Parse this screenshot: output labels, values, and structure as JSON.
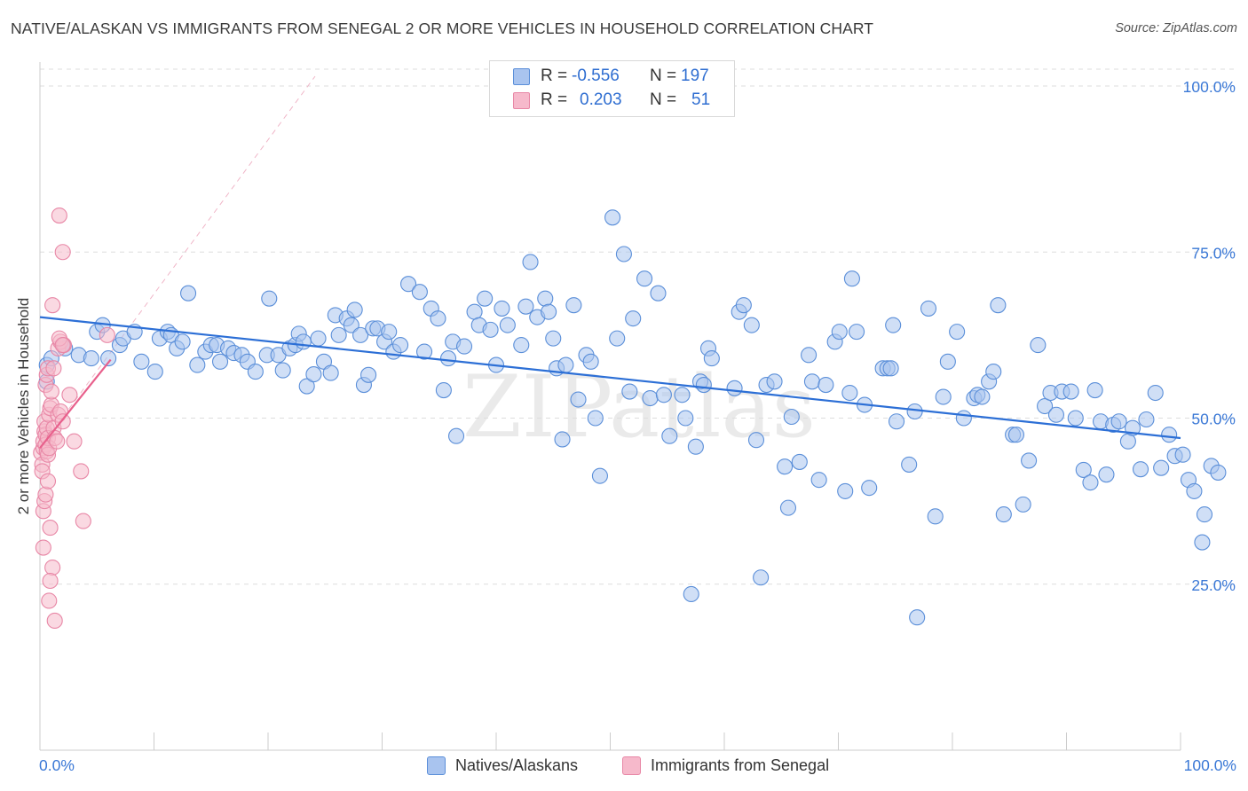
{
  "title": "NATIVE/ALASKAN VS IMMIGRANTS FROM SENEGAL 2 OR MORE VEHICLES IN HOUSEHOLD CORRELATION CHART",
  "source": "Source: ZipAtlas.com",
  "watermark": "ZIPatlas",
  "colors": {
    "blue_fill": "#a9c4ef",
    "blue_stroke": "#5b8fd9",
    "blue_line": "#2c6fd6",
    "pink_fill": "#f6b9cb",
    "pink_stroke": "#e887a6",
    "pink_line": "#e8608c",
    "axis_text": "#3a78d6"
  },
  "legend_top": {
    "r_label": "R =",
    "n_label": "N =",
    "rows": [
      {
        "r": "-0.556",
        "n": "197"
      },
      {
        "r": "0.203",
        "n": "51"
      }
    ]
  },
  "legend_bottom": [
    "Natives/Alaskans",
    "Immigrants from Senegal"
  ],
  "chart_data": {
    "type": "scatter",
    "title": "NATIVE/ALASKAN VS IMMIGRANTS FROM SENEGAL 2 OR MORE VEHICLES IN HOUSEHOLD CORRELATION CHART",
    "xlabel": "",
    "ylabel": "2 or more Vehicles in Household",
    "x_tick_labels": [
      "0.0%",
      "100.0%"
    ],
    "y_tick_labels": [
      "25.0%",
      "50.0%",
      "75.0%",
      "100.0%"
    ],
    "xlim": [
      0,
      100
    ],
    "ylim": [
      0,
      102
    ],
    "grid": "horizontal dashed",
    "legend_position": "top-center",
    "series": [
      {
        "name": "Natives/Alaskans",
        "r": -0.556,
        "n": 197,
        "trend": {
          "x": [
            0,
            100
          ],
          "y": [
            65.2,
            47.0
          ]
        },
        "points": [
          [
            0.6,
            58
          ],
          [
            0.6,
            55.5
          ],
          [
            1,
            59
          ],
          [
            2,
            61
          ],
          [
            2.2,
            60.5
          ],
          [
            3.4,
            59.5
          ],
          [
            4.5,
            59
          ],
          [
            5,
            63
          ],
          [
            5.5,
            64
          ],
          [
            6,
            59
          ],
          [
            7,
            61
          ],
          [
            7.3,
            62
          ],
          [
            8.3,
            63
          ],
          [
            8.9,
            58.5
          ],
          [
            10.1,
            57
          ],
          [
            10.5,
            62
          ],
          [
            11.2,
            63
          ],
          [
            11.5,
            62.5
          ],
          [
            12,
            60.5
          ],
          [
            12.5,
            61.5
          ],
          [
            13,
            68.8
          ],
          [
            13.8,
            58
          ],
          [
            14.5,
            60
          ],
          [
            15,
            61
          ],
          [
            15.5,
            61
          ],
          [
            15.8,
            58.5
          ],
          [
            16.5,
            60.5
          ],
          [
            17,
            59.8
          ],
          [
            17.7,
            59.5
          ],
          [
            18.2,
            58.5
          ],
          [
            18.9,
            57
          ],
          [
            19.9,
            59.5
          ],
          [
            20.1,
            68
          ],
          [
            20.9,
            59.5
          ],
          [
            21.3,
            57.2
          ],
          [
            21.9,
            60.5
          ],
          [
            22.4,
            61
          ],
          [
            22.7,
            62.7
          ],
          [
            23.1,
            61.5
          ],
          [
            23.4,
            54.8
          ],
          [
            24,
            56.6
          ],
          [
            24.4,
            62
          ],
          [
            24.9,
            58.5
          ],
          [
            25.5,
            56.8
          ],
          [
            25.9,
            65.5
          ],
          [
            26.2,
            62.5
          ],
          [
            26.9,
            65
          ],
          [
            27.3,
            64
          ],
          [
            27.6,
            66.3
          ],
          [
            28.1,
            62.5
          ],
          [
            28.4,
            55
          ],
          [
            28.8,
            56.5
          ],
          [
            29.2,
            63.5
          ],
          [
            29.6,
            63.5
          ],
          [
            30.2,
            61.5
          ],
          [
            30.6,
            63
          ],
          [
            31,
            60
          ],
          [
            31.6,
            61
          ],
          [
            32.3,
            70.2
          ],
          [
            33.3,
            69
          ],
          [
            33.7,
            60
          ],
          [
            34.3,
            66.5
          ],
          [
            34.9,
            65
          ],
          [
            35.4,
            54.2
          ],
          [
            35.8,
            59
          ],
          [
            36.2,
            61.5
          ],
          [
            36.5,
            47.3
          ],
          [
            37.2,
            60.8
          ],
          [
            38.1,
            66
          ],
          [
            38.5,
            64
          ],
          [
            39,
            68
          ],
          [
            39.5,
            63.3
          ],
          [
            40,
            58
          ],
          [
            40.5,
            66.5
          ],
          [
            41,
            64
          ],
          [
            42.2,
            61
          ],
          [
            42.6,
            66.8
          ],
          [
            43,
            73.5
          ],
          [
            43.6,
            65.2
          ],
          [
            44.3,
            68
          ],
          [
            44.6,
            66
          ],
          [
            45,
            62
          ],
          [
            45.3,
            57.5
          ],
          [
            45.8,
            46.8
          ],
          [
            46.1,
            58
          ],
          [
            46.8,
            67
          ],
          [
            47.2,
            52.8
          ],
          [
            47.9,
            59.5
          ],
          [
            48.3,
            58.5
          ],
          [
            48.7,
            50
          ],
          [
            49.1,
            41.3
          ],
          [
            50.2,
            80.2
          ],
          [
            50.6,
            62
          ],
          [
            51.2,
            74.7
          ],
          [
            51.7,
            54
          ],
          [
            52,
            65
          ],
          [
            53,
            71
          ],
          [
            53.5,
            53
          ],
          [
            54.2,
            68.8
          ],
          [
            54.7,
            53.5
          ],
          [
            55.2,
            47.3
          ],
          [
            56.3,
            53.5
          ],
          [
            56.6,
            50
          ],
          [
            57.1,
            23.5
          ],
          [
            57.5,
            45.7
          ],
          [
            57.9,
            55.5
          ],
          [
            58.2,
            55
          ],
          [
            58.6,
            60.5
          ],
          [
            58.9,
            59
          ],
          [
            60.9,
            54.5
          ],
          [
            61.3,
            66
          ],
          [
            61.7,
            67
          ],
          [
            62.4,
            64
          ],
          [
            62.8,
            46.7
          ],
          [
            63.2,
            26
          ],
          [
            63.7,
            55
          ],
          [
            64.4,
            55.5
          ],
          [
            65.3,
            42.7
          ],
          [
            65.6,
            36.5
          ],
          [
            65.9,
            50.2
          ],
          [
            66.6,
            43.4
          ],
          [
            67.4,
            59.5
          ],
          [
            67.7,
            55.5
          ],
          [
            68.3,
            40.7
          ],
          [
            68.9,
            55
          ],
          [
            69.7,
            61.5
          ],
          [
            70.1,
            63
          ],
          [
            70.6,
            39
          ],
          [
            71,
            53.8
          ],
          [
            71.2,
            71
          ],
          [
            71.6,
            63
          ],
          [
            72.3,
            52
          ],
          [
            72.7,
            39.5
          ],
          [
            73.9,
            57.5
          ],
          [
            74.3,
            57.5
          ],
          [
            74.6,
            57.5
          ],
          [
            74.8,
            64
          ],
          [
            75.1,
            49.5
          ],
          [
            76.2,
            43
          ],
          [
            76.7,
            51
          ],
          [
            76.9,
            20
          ],
          [
            77.9,
            66.5
          ],
          [
            78.5,
            35.2
          ],
          [
            79.2,
            53.2
          ],
          [
            79.6,
            58.5
          ],
          [
            80.4,
            63
          ],
          [
            81,
            50
          ],
          [
            81.9,
            53
          ],
          [
            82.2,
            53.5
          ],
          [
            82.6,
            53.2
          ],
          [
            83.2,
            55.5
          ],
          [
            83.6,
            57
          ],
          [
            84,
            67
          ],
          [
            84.5,
            35.5
          ],
          [
            85.3,
            47.5
          ],
          [
            85.6,
            47.5
          ],
          [
            86.2,
            37
          ],
          [
            86.7,
            43.6
          ],
          [
            87.5,
            61
          ],
          [
            88.1,
            51.8
          ],
          [
            88.6,
            53.8
          ],
          [
            89.1,
            50.5
          ],
          [
            89.6,
            54
          ],
          [
            90.4,
            54
          ],
          [
            90.8,
            50
          ],
          [
            91.5,
            42.2
          ],
          [
            92.1,
            40.3
          ],
          [
            92.5,
            54.2
          ],
          [
            93,
            49.5
          ],
          [
            93.5,
            41.5
          ],
          [
            94.1,
            49
          ],
          [
            94.6,
            49.5
          ],
          [
            95.4,
            46.5
          ],
          [
            95.8,
            48.5
          ],
          [
            96.5,
            42.3
          ],
          [
            97,
            49.8
          ],
          [
            97.8,
            53.8
          ],
          [
            98.3,
            42.5
          ],
          [
            99,
            47.5
          ],
          [
            99.5,
            44.3
          ],
          [
            100.2,
            44.5
          ],
          [
            100.7,
            40.7
          ],
          [
            101.2,
            39
          ],
          [
            101.9,
            31.3
          ],
          [
            102.1,
            35.5
          ],
          [
            102.7,
            42.8
          ],
          [
            103.3,
            41.8
          ]
        ]
      },
      {
        "name": "Immigrants from Senegal",
        "r": 0.203,
        "n": 51,
        "trend": {
          "x": [
            0,
            6.2
          ],
          "y": [
            45.5,
            58.8
          ]
        },
        "points": [
          [
            0.1,
            44.8
          ],
          [
            0.2,
            43
          ],
          [
            0.2,
            42
          ],
          [
            0.3,
            45.5
          ],
          [
            0.3,
            46.5
          ],
          [
            0.4,
            48
          ],
          [
            0.4,
            49.5
          ],
          [
            0.5,
            47.5
          ],
          [
            0.5,
            46
          ],
          [
            0.6,
            48.5
          ],
          [
            0.6,
            45
          ],
          [
            0.7,
            44.5
          ],
          [
            0.7,
            47
          ],
          [
            0.8,
            45.5
          ],
          [
            0.8,
            50.5
          ],
          [
            0.9,
            51.5
          ],
          [
            1,
            52
          ],
          [
            1.2,
            48.5
          ],
          [
            1.3,
            47
          ],
          [
            1.5,
            46.5
          ],
          [
            1.6,
            50.5
          ],
          [
            1.8,
            51
          ],
          [
            2,
            49.5
          ],
          [
            0.3,
            36
          ],
          [
            0.4,
            37.5
          ],
          [
            0.5,
            38.5
          ],
          [
            0.7,
            40.5
          ],
          [
            0.9,
            33.5
          ],
          [
            1.1,
            27.5
          ],
          [
            0.9,
            25.5
          ],
          [
            0.8,
            22.5
          ],
          [
            1.3,
            19.5
          ],
          [
            0.3,
            30.5
          ],
          [
            0.5,
            55
          ],
          [
            0.6,
            56.5
          ],
          [
            0.7,
            57.5
          ],
          [
            1,
            54
          ],
          [
            1.2,
            57.5
          ],
          [
            1.6,
            60.5
          ],
          [
            1.8,
            61.5
          ],
          [
            2.1,
            61
          ],
          [
            1.1,
            67
          ],
          [
            1.7,
            62
          ],
          [
            3,
            46.5
          ],
          [
            3.6,
            42
          ],
          [
            2.6,
            53.5
          ],
          [
            2,
            61
          ],
          [
            3.8,
            34.5
          ],
          [
            1.7,
            80.5
          ],
          [
            2,
            75
          ],
          [
            5.9,
            62.5
          ]
        ]
      }
    ]
  }
}
